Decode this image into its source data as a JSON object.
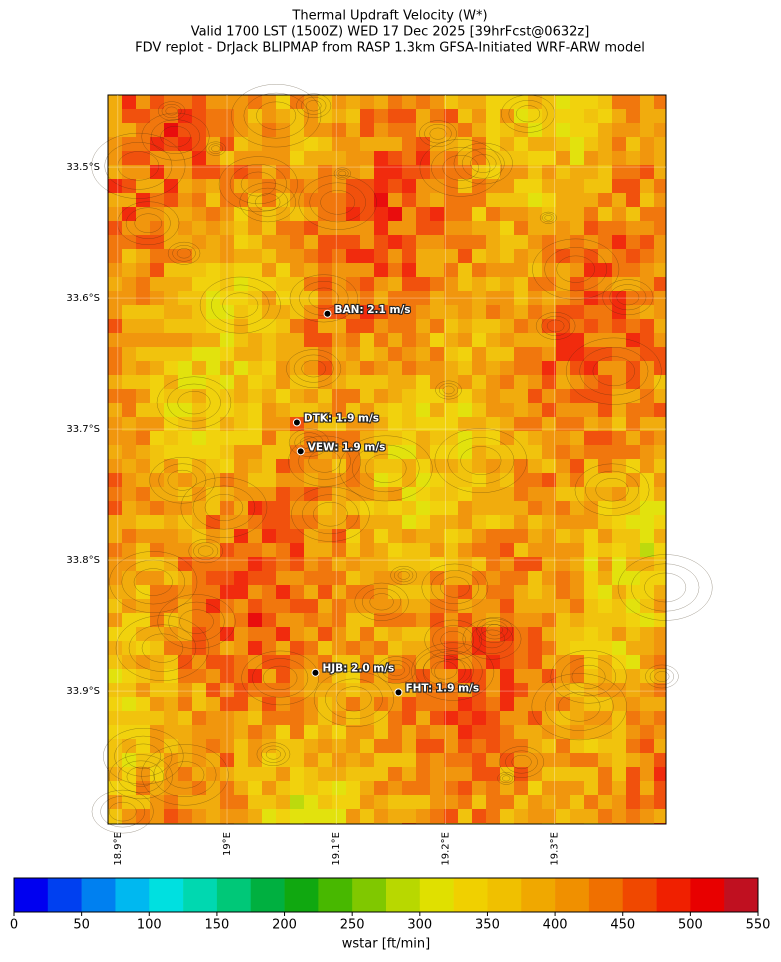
{
  "title": [
    "Thermal Updraft Velocity (W*)",
    "Valid 1700 LST (1500Z) WED 17 Dec 2025 [39hrFcst@0632z]",
    "FDV replot - DrJack BLIPMAP from RASP 1.3km GFSA-Initiated WRF-ARW model"
  ],
  "map": {
    "lon_range": [
      18.891,
      19.402
    ],
    "lat_range": [
      -34.0015,
      -33.445
    ],
    "lon_ticks": [
      {
        "value": 18.9,
        "label": "18.9°E"
      },
      {
        "value": 19.0,
        "label": "19°E"
      },
      {
        "value": 19.1,
        "label": "19.1°E"
      },
      {
        "value": 19.2,
        "label": "19.2°E"
      },
      {
        "value": 19.3,
        "label": "19.3°E"
      }
    ],
    "lat_ticks": [
      {
        "value": -33.5,
        "label": "33.5°S"
      },
      {
        "value": -33.6,
        "label": "33.6°S"
      },
      {
        "value": -33.7,
        "label": "33.7°S"
      },
      {
        "value": -33.8,
        "label": "33.8°S"
      },
      {
        "value": -33.9,
        "label": "33.9°S"
      }
    ],
    "stations": [
      {
        "label": "BAN: 2.1 m/s",
        "lon": 19.092,
        "lat": -33.612
      },
      {
        "label": "DTK: 1.9 m/s",
        "lon": 19.064,
        "lat": -33.695
      },
      {
        "label": "VEW: 1.9 m/s",
        "lon": 19.0675,
        "lat": -33.717
      },
      {
        "label": "HJB: 2.0 m/s",
        "lon": 19.081,
        "lat": -33.886
      },
      {
        "label": "FHT: 1.9 m/s",
        "lon": 19.157,
        "lat": -33.901
      }
    ]
  },
  "colorbar": {
    "label": "wstar [ft/min]",
    "range": [
      0,
      550
    ],
    "ticks": [
      0,
      50,
      100,
      150,
      200,
      250,
      300,
      350,
      400,
      450,
      500,
      550
    ],
    "colors": [
      "#0000f0",
      "#0040f0",
      "#0080f0",
      "#00b8f0",
      "#00e0e0",
      "#00d8b0",
      "#00c878",
      "#00b040",
      "#10a810",
      "#48b800",
      "#80c800",
      "#b8d800",
      "#e0e000",
      "#f0d000",
      "#f0c000",
      "#f0a800",
      "#f09000",
      "#f07000",
      "#f04800",
      "#f02000",
      "#e80000",
      "#c01020"
    ]
  }
}
